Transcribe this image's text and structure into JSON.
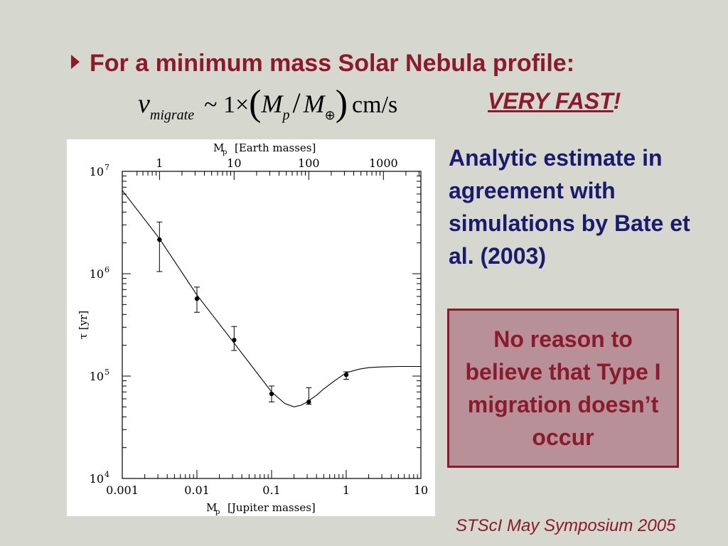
{
  "slide": {
    "heading": "For a minimum mass Solar Nebula profile:",
    "formula": {
      "lhs_var": "v",
      "lhs_sub": "migrate",
      "relation": "~ 1×",
      "mass_p": "M",
      "mass_p_sub": "p",
      "slash": "/",
      "mass_e": "M",
      "mass_e_sub": "⊕",
      "unit": "cm/s"
    },
    "very_fast": "VERY FAST",
    "very_fast_bang": "!",
    "analytic_text": "Analytic estimate in agreement with simulations by Bate et al. (2003)",
    "note_text": "No reason to believe that Type I migration doesn’t occur",
    "footer": "STScI May Symposium 2005"
  },
  "colors": {
    "background": "#d6d7cf",
    "heading": "#8b1a2e",
    "analytic": "#1c1a6e",
    "note_fill": "#b89097"
  },
  "chart_data": {
    "type": "scatter",
    "x_scale": "log",
    "y_scale": "log",
    "xlim": [
      0.001,
      10
    ],
    "ylim": [
      10000,
      10000000
    ],
    "x_ticks": [
      "0.001",
      "0.01",
      "0.1",
      "1",
      "10"
    ],
    "y_ticks": [
      "10",
      "10",
      "10",
      "10"
    ],
    "y_tick_exponents": [
      "4",
      "5",
      "6",
      "7"
    ],
    "top_ticks": [
      "1",
      "10",
      "100",
      "1000"
    ],
    "top_tick_values_jupiter": [
      0.00315,
      0.0315,
      0.315,
      3.15
    ],
    "xlabel_sym": "M",
    "xlabel_sub": "p",
    "xlabel_text": "[Jupiter masses]",
    "top_label_sym": "M",
    "top_label_sub": "p",
    "top_label_text": "[Earth masses]",
    "ylabel": "τ [yr]",
    "points": [
      {
        "x": 0.00315,
        "y": 2150000,
        "ylow": 1050000,
        "yhigh": 3200000
      },
      {
        "x": 0.01,
        "y": 570000,
        "ylow": 420000,
        "yhigh": 740000
      },
      {
        "x": 0.0315,
        "y": 225000,
        "ylow": 178000,
        "yhigh": 305000
      },
      {
        "x": 0.1,
        "y": 67000,
        "ylow": 56000,
        "yhigh": 80000
      },
      {
        "x": 0.315,
        "y": 56000,
        "ylow": 53000,
        "yhigh": 77000
      },
      {
        "x": 1,
        "y": 103000,
        "ylow": 93000,
        "yhigh": 110000
      }
    ],
    "curve": {
      "x": [
        0.001,
        0.00315,
        0.01,
        0.0315,
        0.1,
        0.15,
        0.2,
        0.25,
        0.3,
        0.4,
        0.5,
        0.7,
        1,
        1.5,
        2,
        3,
        5,
        10
      ],
      "y": [
        6500000,
        2200000,
        620000,
        210000,
        70000,
        54000,
        50000,
        52000,
        56000,
        65000,
        75000,
        90000,
        108000,
        117000,
        121000,
        123000,
        124000,
        124000
      ]
    }
  }
}
